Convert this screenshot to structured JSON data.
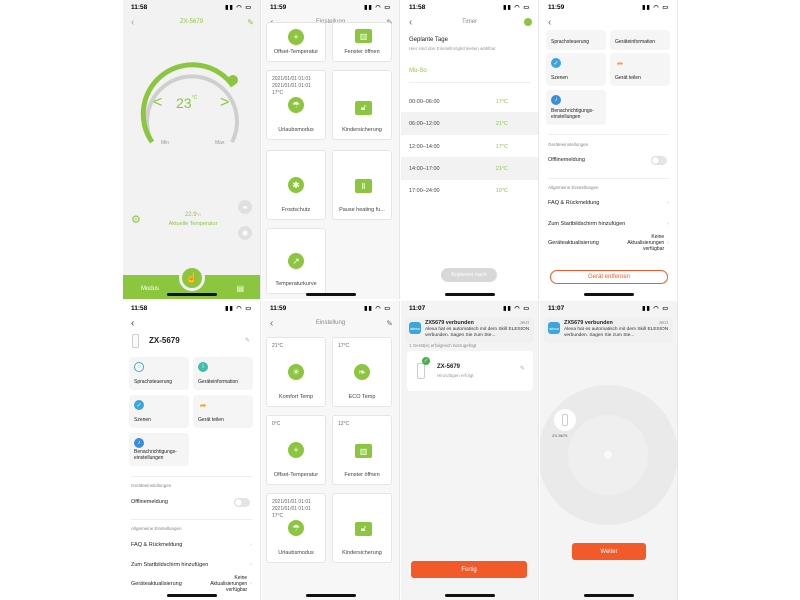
{
  "colors": {
    "accent": "#8cc63f",
    "danger": "#f35a2a",
    "alexa": "#3aa6dd"
  },
  "p1": {
    "time": "11:58",
    "title": "ZX-5679",
    "setpoint": "23",
    "unit": "°C",
    "min": "Min",
    "max": "Max",
    "current": "22.9",
    "current_unit": "°C",
    "current_label": "Aktuelle Temperatur",
    "mode": "Modus"
  },
  "p2": {
    "time": "11:59",
    "title": "Einstellung",
    "tiles": [
      {
        "label": "Offset-Temperatur",
        "icon": "plus-icon"
      },
      {
        "label": "Fenster öffnen",
        "icon": "window-icon"
      },
      {
        "label": "Urlaubsmodus",
        "icon": "palm-icon",
        "sub": "2021/01/01 01:01\n2021/01/01 01:01\n17°C"
      },
      {
        "label": "Kindersicherung",
        "icon": "lock-icon"
      },
      {
        "label": "Frostschutz",
        "icon": "snowflake-icon"
      },
      {
        "label": "Pause heating fu...",
        "icon": "pause-icon"
      },
      {
        "label": "Temperaturkurve",
        "icon": "chart-icon"
      }
    ]
  },
  "p3": {
    "time": "11:58",
    "title": "Timer",
    "heading": "Geplante Tage",
    "sub": "Hier sind drei Einstellmöglichkeiten wählbar",
    "days": "Mo-So",
    "rows": [
      {
        "range": "00:00–06:00",
        "temp": "17°C"
      },
      {
        "range": "06:00–12:00",
        "temp": "21°C"
      },
      {
        "range": "12:00–14:00",
        "temp": "17°C"
      },
      {
        "range": "14:00–17:00",
        "temp": "21°C"
      },
      {
        "range": "17:00–24:00",
        "temp": "10°C"
      }
    ],
    "copy": "Kopieren nach"
  },
  "p4": {
    "time": "11:59",
    "cards": [
      "Sprachsteuerung",
      "Geräteinformation",
      "Szenen",
      "Gerät teilen",
      "Benachrichtigungs-\neinstellungen"
    ],
    "sec1": "Geräteeinstellungen",
    "offline": "Offlinemeldung",
    "sec2": "Allgemeine Einstellungen",
    "faq": "FAQ & Rückmeldung",
    "home": "Zum Startbildschirm hinzufügen",
    "update": "Geräteaktualisierung",
    "update_val": "Keine\nAktualisierungen\nverfügbar",
    "remove": "Gerät entfernen"
  },
  "p5": {
    "time": "11:58",
    "device": "ZX-5679",
    "cards": [
      "Sprachsteuerung",
      "Geräteinformation",
      "Szenen",
      "Gerät teilen",
      "Benachrichtigungs-\neinstellungen"
    ],
    "sec1": "Geräteeinstellungen",
    "offline": "Offlinemeldung",
    "sec2": "Allgemeine Einstellungen",
    "faq": "FAQ & Rückmeldung",
    "home": "Zum Startbildschirm hinzufügen",
    "update": "Geräteaktualisierung",
    "update_val": "Keine\nAktualisierungen\nverfügbar"
  },
  "p6": {
    "time": "11:59",
    "title": "Einstellung",
    "tiles": [
      {
        "label": "Komfort Temp",
        "icon": "sun-icon",
        "sub": "21°C"
      },
      {
        "label": "ECO Temp",
        "icon": "leaf-icon",
        "sub": "17°C"
      },
      {
        "label": "Offset-Temperatur",
        "icon": "plus-icon",
        "sub": "0°C"
      },
      {
        "label": "Fenster öffnen",
        "icon": "window-icon",
        "sub": "12°C"
      },
      {
        "label": "Urlaubsmodus",
        "icon": "palm-icon",
        "sub": "2021/01/01 01:01\n2021/01/01 01:01\n17°C"
      },
      {
        "label": "Kindersicherung",
        "icon": "lock-icon"
      }
    ]
  },
  "p7": {
    "time": "11:07",
    "n_title": "ZX5679 verbunden",
    "n_when": "Jetzt",
    "n_msg": "Alexa hat es automatisch mit dem Skill ELESION verbunden. Sagen Sie zum Ste...",
    "added": "1 Gerät(e) erfolgreich hinzugefügt",
    "device": "ZX-5679",
    "device_sub": "Hinzufügen erfolgt",
    "done": "Fertig"
  },
  "p8": {
    "time": "11:07",
    "n_title": "ZX5679 verbunden",
    "n_when": "Jetzt",
    "n_msg": "Alexa hat es automatisch mit dem Skill ELESION verbunden. Sagen Sie zum Ste...",
    "device": "ZX-5679",
    "next": "Weiter"
  }
}
